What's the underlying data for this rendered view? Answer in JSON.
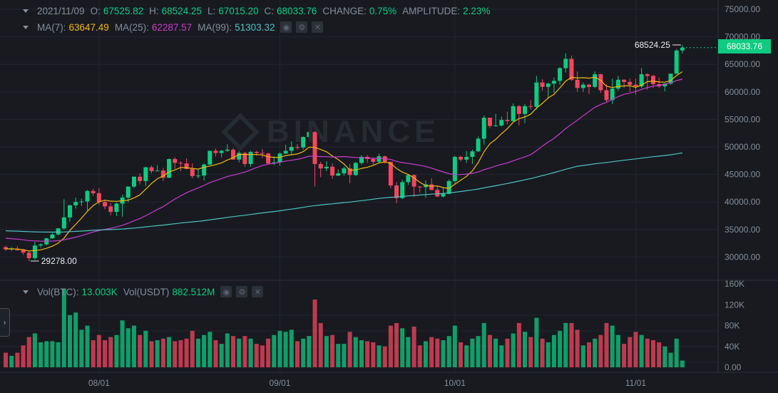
{
  "ohlc_legend": {
    "date": "2021/11/09",
    "open_label": "O:",
    "open": "67525.82",
    "high_label": "H:",
    "high": "68524.25",
    "low_label": "L:",
    "low": "67015.20",
    "close_label": "C:",
    "close": "68033.76",
    "change_label": "CHANGE:",
    "change": "0.75%",
    "amplitude_label": "AMPLITUDE:",
    "amplitude": "2.23%"
  },
  "ma_legend": {
    "ma7_label": "MA(7):",
    "ma7": "63647.49",
    "ma25_label": "MA(25):",
    "ma25": "62287.57",
    "ma99_label": "MA(99):",
    "ma99": "51303.32"
  },
  "vol_legend": {
    "btc_label": "Vol(BTC):",
    "btc": "13.003K",
    "usdt_label": "Vol(USDT)",
    "usdt": "882.512M"
  },
  "price_axis": [
    "75000.00",
    "70000.00",
    "65000.00",
    "60000.00",
    "55000.00",
    "50000.00",
    "45000.00",
    "40000.00",
    "35000.00",
    "30000.00"
  ],
  "volume_axis": [
    "160K",
    "120K",
    "80K",
    "40K",
    "0.00"
  ],
  "time_axis": [
    "08/01",
    "09/01",
    "10/01",
    "11/01"
  ],
  "current_price": "68033.76",
  "high_marker": "68524.25",
  "low_marker": "29278.00",
  "watermark": "BINANCE",
  "handle_glyph": "›",
  "colors": {
    "up": "#0ecb81",
    "down": "#f6465d",
    "ma7": "#f0b90b",
    "ma25": "#c93ccf",
    "ma99": "#4cc3c6"
  },
  "icons": [
    "chevron-down-icon",
    "eye-icon",
    "gear-icon",
    "close-icon"
  ],
  "chart_data": {
    "type": "candlestick",
    "title": "",
    "y_range": [
      27000,
      76000
    ],
    "vol_range": [
      0,
      160
    ],
    "date_range": [
      "2021-07-16",
      "2021-11-10"
    ],
    "candles": [
      [
        "07-16",
        31800,
        32100,
        31100,
        31400,
        28
      ],
      [
        "07-17",
        31400,
        31800,
        31100,
        31500,
        22
      ],
      [
        "07-18",
        31500,
        31950,
        31200,
        31250,
        28
      ],
      [
        "07-19",
        31250,
        31400,
        30400,
        30800,
        42
      ],
      [
        "07-20",
        30800,
        31050,
        29278,
        29800,
        58
      ],
      [
        "07-21",
        29800,
        32800,
        29500,
        32100,
        65
      ],
      [
        "07-22",
        32100,
        32500,
        31700,
        32300,
        48
      ],
      [
        "07-23",
        32300,
        33500,
        32100,
        33400,
        50
      ],
      [
        "07-24",
        33400,
        34400,
        33300,
        34100,
        50
      ],
      [
        "07-25",
        34100,
        35300,
        33900,
        35200,
        48
      ],
      [
        "07-26",
        35200,
        40500,
        35000,
        37200,
        150
      ],
      [
        "07-27",
        37200,
        39500,
        36400,
        39400,
        100
      ],
      [
        "07-28",
        39400,
        40800,
        38800,
        40000,
        105
      ],
      [
        "07-29",
        40000,
        40600,
        39300,
        40100,
        72
      ],
      [
        "07-30",
        40100,
        42200,
        38400,
        42000,
        80
      ],
      [
        "07-31",
        42000,
        42400,
        41100,
        41600,
        52
      ],
      [
        "08-01",
        41600,
        42500,
        39500,
        40000,
        62
      ],
      [
        "08-02",
        40000,
        40400,
        38700,
        39200,
        52
      ],
      [
        "08-03",
        39200,
        39800,
        37600,
        38200,
        58
      ],
      [
        "08-04",
        38200,
        39900,
        37500,
        39700,
        62
      ],
      [
        "08-05",
        39700,
        41300,
        37300,
        40800,
        90
      ],
      [
        "08-06",
        40800,
        42800,
        39900,
        42800,
        75
      ],
      [
        "08-07",
        42800,
        44600,
        42500,
        44600,
        80
      ],
      [
        "08-08",
        44600,
        45200,
        43200,
        43800,
        62
      ],
      [
        "08-09",
        43800,
        46400,
        42900,
        46300,
        70
      ],
      [
        "08-10",
        46300,
        46600,
        45200,
        45600,
        50
      ],
      [
        "08-11",
        45600,
        46700,
        45600,
        45700,
        52
      ],
      [
        "08-12",
        45700,
        46200,
        43800,
        44400,
        55
      ],
      [
        "08-13",
        44400,
        47900,
        44300,
        47800,
        58
      ],
      [
        "08-14",
        47800,
        48100,
        46000,
        47100,
        50
      ],
      [
        "08-15",
        47100,
        47400,
        45600,
        47000,
        52
      ],
      [
        "08-16",
        47000,
        47900,
        45900,
        46000,
        55
      ],
      [
        "08-17",
        46000,
        47000,
        44300,
        44700,
        70
      ],
      [
        "08-18",
        44700,
        46000,
        44300,
        44800,
        55
      ],
      [
        "08-19",
        44800,
        47000,
        43900,
        46800,
        62
      ],
      [
        "08-20",
        46800,
        49300,
        46700,
        49300,
        68
      ],
      [
        "08-21",
        49300,
        49700,
        48300,
        48900,
        52
      ],
      [
        "08-22",
        48900,
        49500,
        48100,
        49300,
        45
      ],
      [
        "08-23",
        49300,
        50500,
        49100,
        49500,
        65
      ],
      [
        "08-24",
        49500,
        49800,
        47700,
        47700,
        60
      ],
      [
        "08-25",
        47700,
        49300,
        47200,
        48900,
        55
      ],
      [
        "08-26",
        48900,
        49100,
        46400,
        46900,
        60
      ],
      [
        "08-27",
        46900,
        49300,
        46400,
        49100,
        55
      ],
      [
        "08-28",
        49100,
        49300,
        48400,
        48900,
        45
      ],
      [
        "08-29",
        48900,
        49600,
        48000,
        48800,
        42
      ],
      [
        "08-30",
        48800,
        48900,
        46900,
        47000,
        55
      ],
      [
        "08-31",
        47000,
        48300,
        46700,
        47200,
        62
      ],
      [
        "09-01",
        47200,
        49000,
        46600,
        48800,
        70
      ],
      [
        "09-02",
        48800,
        50400,
        48700,
        49300,
        68
      ],
      [
        "09-03",
        49300,
        51000,
        48500,
        50000,
        72
      ],
      [
        "09-04",
        50000,
        50500,
        49500,
        49900,
        50
      ],
      [
        "09-05",
        49900,
        51900,
        49500,
        51800,
        55
      ],
      [
        "09-06",
        51800,
        52900,
        50900,
        52700,
        60
      ],
      [
        "09-07",
        52700,
        52900,
        42800,
        46900,
        130
      ],
      [
        "09-08",
        46900,
        47300,
        44500,
        46100,
        85
      ],
      [
        "09-09",
        46100,
        47400,
        45600,
        46400,
        60
      ],
      [
        "09-10",
        46400,
        47000,
        44200,
        44800,
        62
      ],
      [
        "09-11",
        44800,
        45900,
        44700,
        45200,
        45
      ],
      [
        "09-12",
        45200,
        46400,
        44800,
        46100,
        45
      ],
      [
        "09-13",
        46100,
        46900,
        43400,
        44900,
        68
      ],
      [
        "09-14",
        44900,
        47300,
        44700,
        47100,
        58
      ],
      [
        "09-15",
        47100,
        48500,
        46800,
        48200,
        52
      ],
      [
        "09-16",
        48200,
        48500,
        47100,
        47800,
        50
      ],
      [
        "09-17",
        47800,
        48100,
        46800,
        47300,
        48
      ],
      [
        "09-18",
        47300,
        48800,
        47100,
        48300,
        42
      ],
      [
        "09-19",
        48300,
        48400,
        47000,
        47300,
        40
      ],
      [
        "09-20",
        47300,
        47300,
        42500,
        43000,
        80
      ],
      [
        "09-21",
        43000,
        43600,
        39800,
        40700,
        85
      ],
      [
        "09-22",
        40700,
        44000,
        40500,
        43600,
        75
      ],
      [
        "09-23",
        43600,
        44900,
        43100,
        44900,
        58
      ],
      [
        "09-24",
        44900,
        45000,
        40900,
        42800,
        78
      ],
      [
        "09-25",
        42800,
        42900,
        41700,
        42700,
        42
      ],
      [
        "09-26",
        42700,
        43900,
        40800,
        43200,
        50
      ],
      [
        "09-27",
        43200,
        44300,
        42100,
        42200,
        58
      ],
      [
        "09-28",
        42200,
        42800,
        40900,
        41000,
        55
      ],
      [
        "09-29",
        41000,
        42600,
        40800,
        41500,
        52
      ],
      [
        "09-30",
        41500,
        44100,
        41400,
        43800,
        60
      ],
      [
        "10-01",
        43800,
        48400,
        43300,
        48200,
        80
      ],
      [
        "10-02",
        48200,
        48400,
        47400,
        47700,
        48
      ],
      [
        "10-03",
        47700,
        49300,
        47100,
        48200,
        42
      ],
      [
        "10-04",
        48200,
        49500,
        46900,
        49200,
        55
      ],
      [
        "10-05",
        49200,
        51900,
        49100,
        51500,
        60
      ],
      [
        "10-06",
        51500,
        55700,
        50400,
        55300,
        85
      ],
      [
        "10-07",
        55300,
        55300,
        53400,
        53800,
        62
      ],
      [
        "10-08",
        53800,
        56000,
        53700,
        53900,
        55
      ],
      [
        "10-09",
        53900,
        55500,
        53700,
        54900,
        42
      ],
      [
        "10-10",
        54900,
        56400,
        54100,
        54700,
        55
      ],
      [
        "10-11",
        54700,
        57900,
        54500,
        57400,
        65
      ],
      [
        "10-12",
        57400,
        57600,
        53900,
        56000,
        85
      ],
      [
        "10-13",
        56000,
        57800,
        54300,
        57400,
        68
      ],
      [
        "10-14",
        57400,
        58500,
        56800,
        57300,
        58
      ],
      [
        "10-15",
        57300,
        62900,
        56800,
        61700,
        95
      ],
      [
        "10-16",
        61700,
        62300,
        60200,
        60900,
        55
      ],
      [
        "10-17",
        60900,
        61700,
        58900,
        61500,
        48
      ],
      [
        "10-18",
        61500,
        62600,
        59800,
        62000,
        62
      ],
      [
        "10-19",
        62000,
        64500,
        61300,
        64300,
        70
      ],
      [
        "10-20",
        64300,
        67000,
        63500,
        66000,
        85
      ],
      [
        "10-21",
        66000,
        66600,
        62000,
        62200,
        85
      ],
      [
        "10-22",
        62200,
        63700,
        60000,
        60700,
        72
      ],
      [
        "10-23",
        60700,
        61700,
        60000,
        61300,
        42
      ],
      [
        "10-24",
        61300,
        61500,
        59600,
        60900,
        48
      ],
      [
        "10-25",
        60900,
        63700,
        60700,
        63200,
        55
      ],
      [
        "10-26",
        63200,
        63300,
        59800,
        60300,
        62
      ],
      [
        "10-27",
        60300,
        61400,
        58100,
        58500,
        85
      ],
      [
        "10-28",
        58500,
        62400,
        57800,
        60600,
        80
      ],
      [
        "10-29",
        60600,
        62900,
        60200,
        62200,
        62
      ],
      [
        "10-30",
        62200,
        62300,
        60700,
        61800,
        45
      ],
      [
        "10-31",
        61800,
        62400,
        60000,
        61300,
        58
      ],
      [
        "11-01",
        61300,
        62400,
        59500,
        61000,
        68
      ],
      [
        "11-02",
        61000,
        64300,
        60700,
        63200,
        62
      ],
      [
        "11-03",
        63200,
        63400,
        60400,
        62900,
        55
      ],
      [
        "11-04",
        62900,
        63100,
        60700,
        61400,
        52
      ],
      [
        "11-05",
        61400,
        62600,
        60700,
        61000,
        48
      ],
      [
        "11-06",
        61000,
        61600,
        60100,
        61500,
        40
      ],
      [
        "11-07",
        61500,
        63300,
        61300,
        63300,
        28
      ],
      [
        "11-08",
        63300,
        67800,
        63300,
        67500,
        55
      ],
      [
        "11-09",
        67525,
        68524,
        67015,
        68033,
        13
      ]
    ]
  }
}
